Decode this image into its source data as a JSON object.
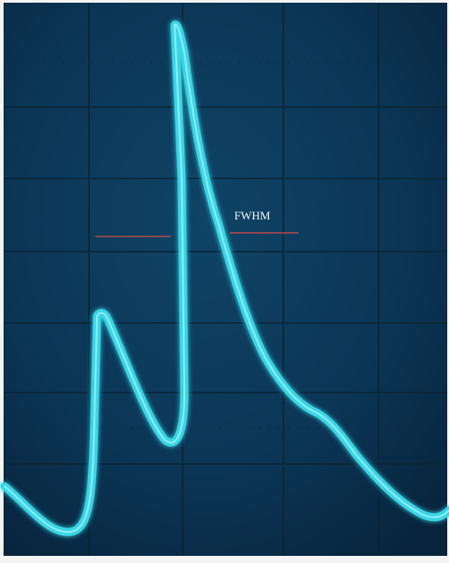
{
  "annotation": "FWHM"
}
